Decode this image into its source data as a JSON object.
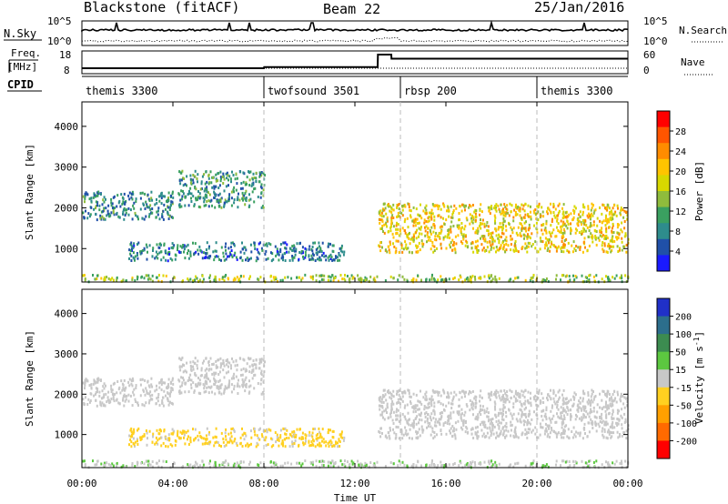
{
  "header": {
    "site": "Blackstone (fitACF)",
    "beam": "Beam 22",
    "date": "25/Jan/2016"
  },
  "noise_panel": {
    "left_label": "N.Sky",
    "right_label": "N.Search",
    "left_ticks": [
      "10^5",
      "10^0"
    ],
    "right_ticks": [
      "10^5",
      "10^0"
    ]
  },
  "freq_panel": {
    "left_label_line1": "Freq.",
    "left_label_line2": "[MHz]",
    "right_label": "Nave",
    "left_ticks": [
      "18",
      "8"
    ],
    "right_ticks": [
      "60",
      "0"
    ],
    "freq_steps": [
      {
        "t": 0,
        "v": 10.4
      },
      {
        "t": 8.0,
        "v": 10.4
      },
      {
        "t": 8.01,
        "v": 10.9
      },
      {
        "t": 13.0,
        "v": 10.9
      },
      {
        "t": 13.01,
        "v": 16.4
      },
      {
        "t": 13.6,
        "v": 16.4
      },
      {
        "t": 13.61,
        "v": 14.6
      },
      {
        "t": 24,
        "v": 14.6
      }
    ]
  },
  "cpid": {
    "label": "CPID",
    "segments": [
      {
        "start": 0,
        "end": 8,
        "name": "themis 3300"
      },
      {
        "start": 8,
        "end": 14,
        "name": "twofsound 3501"
      },
      {
        "start": 14,
        "end": 20,
        "name": "rbsp 200"
      },
      {
        "start": 20,
        "end": 24,
        "name": "themis 3300"
      }
    ]
  },
  "power_panel": {
    "ylabel": "Slant Range [km]",
    "colorbar_label": "Power [dB]",
    "colorbar_ticks": [
      "28",
      "24",
      "20",
      "16",
      "12",
      "8",
      "4"
    ],
    "colorbar_colors": [
      "#ff0000",
      "#ff5500",
      "#ff8c00",
      "#ffc400",
      "#d8d800",
      "#8fbc3c",
      "#3aa060",
      "#2e8c8c",
      "#2050a8",
      "#1a1aff"
    ]
  },
  "velocity_panel": {
    "ylabel": "Slant Range [km]",
    "colorbar_label": "Velocity [m s-1]",
    "colorbar_ticks": [
      "200",
      "100",
      "50",
      "15",
      "-15",
      "-50",
      "-100",
      "-200"
    ],
    "colorbar_colors": [
      "#2030c8",
      "#2c6e8c",
      "#3c8c50",
      "#5cc840",
      "#c8c8c8",
      "#ffd020",
      "#ffa000",
      "#ff6a00",
      "#ff0000"
    ]
  },
  "xaxis": {
    "ticks": [
      "00:00",
      "04:00",
      "08:00",
      "12:00",
      "16:00",
      "20:00",
      "00:00"
    ],
    "label": "Time UT"
  },
  "yaxis": {
    "ticks": [
      "1000",
      "2000",
      "3000",
      "4000"
    ]
  },
  "chart_data": {
    "type": "heatmap",
    "title": "Blackstone (fitACF) Beam 22 25/Jan/2016",
    "xlabel": "Time UT",
    "ylabel": "Slant Range [km]",
    "xlim": [
      0,
      24
    ],
    "ylim": [
      180,
      4600
    ],
    "power_scale_db": [
      0,
      30
    ],
    "velocity_scale_ms": [
      -250,
      250
    ],
    "echo_regions": [
      {
        "name": "near-range band",
        "t_start": 0,
        "t_end": 24,
        "r_start": 180,
        "r_end": 350,
        "power_db": 14,
        "velocity_ms": 20
      },
      {
        "name": "early far-range arc",
        "t_start": 0,
        "t_end": 4,
        "r_start": 1700,
        "r_end": 2400,
        "power_db": 8,
        "velocity_ms": 0
      },
      {
        "name": "rising arc",
        "t_start": 4.2,
        "t_end": 8,
        "r_start": 2000,
        "r_end": 2900,
        "power_db": 9,
        "velocity_ms": 0
      },
      {
        "name": "mid-range band",
        "t_start": 2,
        "t_end": 11.5,
        "r_start": 700,
        "r_end": 1150,
        "power_db": 7,
        "velocity_ms": -40
      },
      {
        "name": "main sporadic band",
        "t_start": 13,
        "t_end": 24,
        "r_start": 900,
        "r_end": 2100,
        "power_db": 18,
        "velocity_ms": 5
      }
    ]
  }
}
